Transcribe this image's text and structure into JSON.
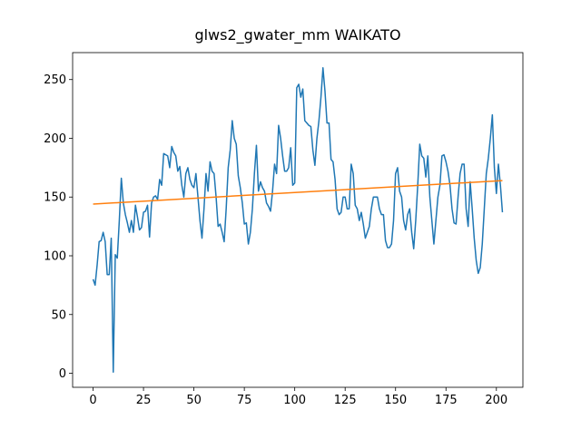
{
  "chart_data": {
    "type": "line",
    "title": "glws2_gwater_mm WAIKATO",
    "x": [
      0,
      1,
      2,
      3,
      4,
      5,
      6,
      7,
      8,
      9,
      10,
      11,
      12,
      13,
      14,
      15,
      16,
      17,
      18,
      19,
      20,
      21,
      22,
      23,
      24,
      25,
      26,
      27,
      28,
      29,
      30,
      31,
      32,
      33,
      34,
      35,
      36,
      37,
      38,
      39,
      40,
      41,
      42,
      43,
      44,
      45,
      46,
      47,
      48,
      49,
      50,
      51,
      52,
      53,
      54,
      55,
      56,
      57,
      58,
      59,
      60,
      61,
      62,
      63,
      64,
      65,
      66,
      67,
      68,
      69,
      70,
      71,
      72,
      73,
      74,
      75,
      76,
      77,
      78,
      79,
      80,
      81,
      82,
      83,
      84,
      85,
      86,
      87,
      88,
      89,
      90,
      91,
      92,
      93,
      94,
      95,
      96,
      97,
      98,
      99,
      100,
      101,
      102,
      103,
      104,
      105,
      106,
      107,
      108,
      109,
      110,
      111,
      112,
      113,
      114,
      115,
      116,
      117,
      118,
      119,
      120,
      121,
      122,
      123,
      124,
      125,
      126,
      127,
      128,
      129,
      130,
      131,
      132,
      133,
      134,
      135,
      136,
      137,
      138,
      139,
      140,
      141,
      142,
      143,
      144,
      145,
      146,
      147,
      148,
      149,
      150,
      151,
      152,
      153,
      154,
      155,
      156,
      157,
      158,
      159,
      160,
      161,
      162,
      163,
      164,
      165,
      166,
      167,
      168,
      169,
      170,
      171,
      172,
      173,
      174,
      175,
      176,
      177,
      178,
      179,
      180,
      181,
      182,
      183,
      184,
      185,
      186,
      187,
      188,
      189,
      190,
      191,
      192,
      193,
      194,
      195,
      196,
      197,
      198,
      199,
      200,
      201,
      202,
      203
    ],
    "series": [
      {
        "color": "#1f77b4",
        "values": [
          80,
          75,
          92,
          112,
          113,
          120,
          112,
          84,
          84,
          115,
          1,
          101,
          98,
          130,
          166,
          145,
          135,
          128,
          120,
          130,
          120,
          143,
          133,
          122,
          124,
          137,
          138,
          143,
          116,
          145,
          150,
          151,
          148,
          165,
          160,
          187,
          186,
          185,
          175,
          193,
          188,
          185,
          172,
          176,
          160,
          150,
          170,
          175,
          165,
          160,
          158,
          170,
          150,
          130,
          115,
          140,
          170,
          155,
          180,
          172,
          170,
          150,
          125,
          127,
          120,
          112,
          140,
          175,
          190,
          215,
          200,
          195,
          168,
          158,
          145,
          127,
          128,
          110,
          120,
          140,
          170,
          194,
          155,
          163,
          158,
          155,
          145,
          142,
          138,
          155,
          178,
          170,
          211,
          200,
          185,
          172,
          172,
          175,
          192,
          160,
          162,
          243,
          246,
          235,
          242,
          215,
          213,
          211,
          210,
          190,
          177,
          200,
          215,
          235,
          260,
          240,
          213,
          213,
          182,
          180,
          165,
          140,
          135,
          137,
          150,
          150,
          140,
          140,
          178,
          170,
          143,
          140,
          130,
          137,
          127,
          115,
          120,
          125,
          140,
          150,
          150,
          150,
          140,
          135,
          135,
          113,
          107,
          107,
          110,
          130,
          170,
          175,
          155,
          150,
          130,
          122,
          135,
          140,
          120,
          106,
          130,
          160,
          195,
          185,
          183,
          167,
          185,
          150,
          130,
          110,
          130,
          150,
          160,
          185,
          186,
          180,
          172,
          160,
          140,
          128,
          127,
          150,
          170,
          178,
          178,
          140,
          125,
          163,
          140,
          115,
          96,
          85,
          90,
          110,
          140,
          170,
          183,
          200,
          220,
          175,
          153,
          178,
          160,
          137
        ]
      },
      {
        "color": "#ff7f0e",
        "x": [
          0,
          203
        ],
        "values": [
          144,
          164
        ]
      }
    ],
    "xlim": [
      -10.15,
      213.15
    ],
    "ylim": [
      -11.95,
      272.95
    ],
    "xticks": [
      0,
      25,
      50,
      75,
      100,
      125,
      150,
      175,
      200
    ],
    "yticks": [
      0,
      50,
      100,
      150,
      200,
      250
    ]
  }
}
